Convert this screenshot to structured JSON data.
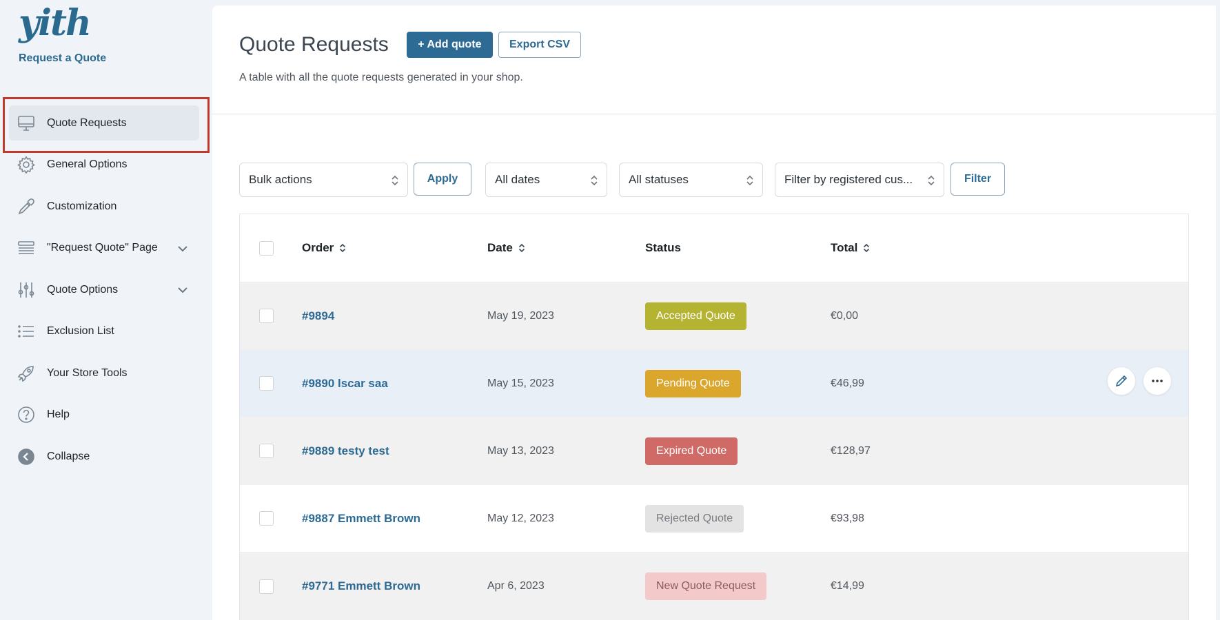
{
  "brand": {
    "logo_text": "yith",
    "subtitle": "Request a Quote"
  },
  "sidebar": {
    "items": [
      {
        "label": "Quote Requests",
        "icon": "monitor-icon",
        "active": true,
        "has_submenu": false
      },
      {
        "label": "General Options",
        "icon": "gear-icon",
        "active": false,
        "has_submenu": false
      },
      {
        "label": "Customization",
        "icon": "eyedropper-icon",
        "active": false,
        "has_submenu": false
      },
      {
        "label": "\"Request Quote\" Page",
        "icon": "layers-icon",
        "active": false,
        "has_submenu": true
      },
      {
        "label": "Quote Options",
        "icon": "sliders-icon",
        "active": false,
        "has_submenu": true
      },
      {
        "label": "Exclusion List",
        "icon": "list-icon",
        "active": false,
        "has_submenu": false
      },
      {
        "label": "Your Store Tools",
        "icon": "rocket-icon",
        "active": false,
        "has_submenu": false
      },
      {
        "label": "Help",
        "icon": "help-circle-icon",
        "active": false,
        "has_submenu": false
      },
      {
        "label": "Collapse",
        "icon": "collapse-arrow-icon",
        "active": false,
        "has_submenu": false
      }
    ]
  },
  "header": {
    "title": "Quote Requests",
    "add_label": "+ Add quote",
    "export_label": "Export CSV",
    "description": "A table with all the quote requests generated in your shop."
  },
  "filters": {
    "bulk_actions": "Bulk actions",
    "apply_label": "Apply",
    "dates": "All dates",
    "statuses": "All statuses",
    "customer": "Filter by registered cus...",
    "filter_label": "Filter"
  },
  "table": {
    "columns": {
      "order": "Order",
      "date": "Date",
      "status": "Status",
      "total": "Total"
    },
    "rows": [
      {
        "order": "#9894",
        "date": "May 19, 2023",
        "status": "Accepted Quote",
        "total": "€0,00"
      },
      {
        "order": "#9890 lscar saa",
        "date": "May 15, 2023",
        "status": "Pending Quote",
        "total": "€46,99"
      },
      {
        "order": "#9889 testy test",
        "date": "May 13, 2023",
        "status": "Expired Quote",
        "total": "€128,97"
      },
      {
        "order": "#9887 Emmett Brown",
        "date": "May 12, 2023",
        "status": "Rejected Quote",
        "total": "€93,98"
      },
      {
        "order": "#9771 Emmett Brown",
        "date": "Apr 6, 2023",
        "status": "New Quote Request",
        "total": "€14,99"
      }
    ]
  },
  "status_colors": {
    "accepted": {
      "bg": "#b5b332",
      "fg": "#ffffff"
    },
    "pending": {
      "bg": "#dba62c",
      "fg": "#ffffff"
    },
    "expired": {
      "bg": "#d06a66",
      "fg": "#ffffff"
    },
    "rejected": {
      "bg": "#e3e3e3",
      "fg": "#787c82"
    },
    "new": {
      "bg": "#f4c9c9",
      "fg": "#8c5b5b"
    }
  },
  "colors": {
    "accent": "#2e6b94",
    "highlight_border": "#c0392b"
  }
}
